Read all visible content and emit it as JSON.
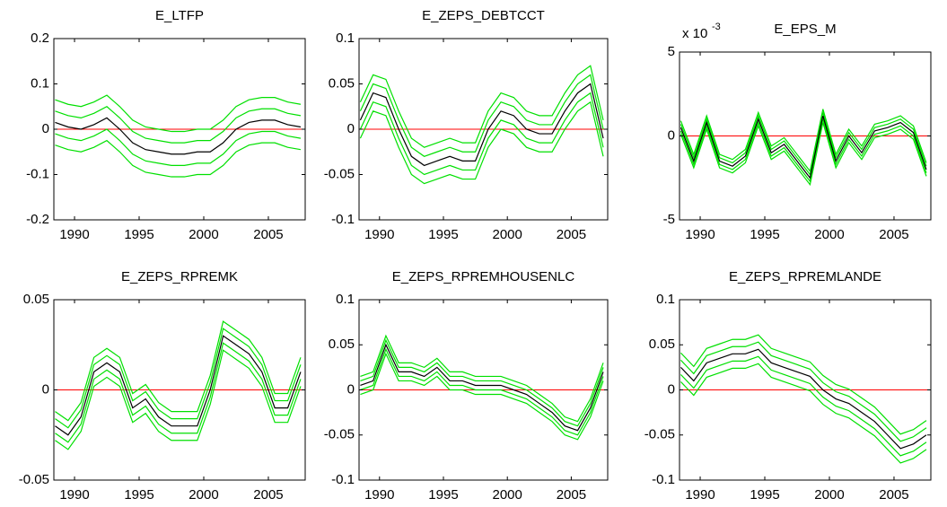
{
  "chart_data": [
    {
      "type": "line",
      "title": "E_LTFP",
      "x": [
        1988.5,
        1989.5,
        1990.5,
        1991.5,
        1992.5,
        1993.5,
        1994.5,
        1995.5,
        1996.5,
        1997.5,
        1998.5,
        1999.5,
        2000.5,
        2001.5,
        2002.5,
        2003.5,
        2004.5,
        2005.5,
        2006.5,
        2007.5
      ],
      "xlim": [
        1988.4,
        2007.85
      ],
      "xticks": [
        1990,
        1995,
        2000,
        2005
      ],
      "ylim": [
        -0.2,
        0.2
      ],
      "yticks": [
        -0.2,
        -0.1,
        0,
        0.1,
        0.2
      ],
      "reference_line": {
        "value": 0,
        "color": "#ff0000"
      },
      "series": [
        {
          "color": "#00e000",
          "values": [
            0.065,
            0.055,
            0.05,
            0.06,
            0.075,
            0.05,
            0.02,
            0.005,
            0,
            -0.005,
            -0.005,
            0,
            0,
            0.02,
            0.05,
            0.065,
            0.07,
            0.07,
            0.06,
            0.055
          ]
        },
        {
          "color": "#00e000",
          "values": [
            0.04,
            0.03,
            0.025,
            0.035,
            0.05,
            0.025,
            -0.005,
            -0.02,
            -0.025,
            -0.03,
            -0.03,
            -0.025,
            -0.025,
            -0.005,
            0.025,
            0.04,
            0.045,
            0.045,
            0.035,
            0.03
          ]
        },
        {
          "color": "#00e000",
          "values": [
            -0.01,
            -0.02,
            -0.025,
            -0.015,
            0,
            -0.025,
            -0.055,
            -0.07,
            -0.075,
            -0.08,
            -0.08,
            -0.075,
            -0.075,
            -0.055,
            -0.025,
            -0.01,
            -0.005,
            -0.005,
            -0.015,
            -0.02
          ]
        },
        {
          "color": "#00e000",
          "values": [
            -0.035,
            -0.045,
            -0.05,
            -0.04,
            -0.025,
            -0.05,
            -0.08,
            -0.095,
            -0.1,
            -0.105,
            -0.105,
            -0.1,
            -0.1,
            -0.08,
            -0.05,
            -0.035,
            -0.03,
            -0.03,
            -0.04,
            -0.045
          ]
        },
        {
          "color": "#000000",
          "values": [
            0.015,
            0.005,
            0,
            0.01,
            0.025,
            0,
            -0.03,
            -0.045,
            -0.05,
            -0.055,
            -0.055,
            -0.05,
            -0.05,
            -0.03,
            0,
            0.015,
            0.02,
            0.02,
            0.01,
            0.005
          ]
        }
      ]
    },
    {
      "type": "line",
      "title": "E_ZEPS_DEBTCCT",
      "x": [
        1988.5,
        1989.5,
        1990.5,
        1991.5,
        1992.5,
        1993.5,
        1994.5,
        1995.5,
        1996.5,
        1997.5,
        1998.5,
        1999.5,
        2000.5,
        2001.5,
        2002.5,
        2003.5,
        2004.5,
        2005.5,
        2006.5,
        2007.5
      ],
      "xlim": [
        1988.4,
        2007.85
      ],
      "xticks": [
        1990,
        1995,
        2000,
        2005
      ],
      "ylim": [
        -0.1,
        0.1
      ],
      "yticks": [
        -0.1,
        -0.05,
        0,
        0.05,
        0.1
      ],
      "reference_line": {
        "value": 0,
        "color": "#ff0000"
      },
      "series": [
        {
          "color": "#00e000",
          "values": [
            0.03,
            0.06,
            0.055,
            0.02,
            -0.01,
            -0.02,
            -0.015,
            -0.01,
            -0.015,
            -0.015,
            0.02,
            0.04,
            0.035,
            0.02,
            0.015,
            0.015,
            0.04,
            0.06,
            0.07,
            0.01
          ]
        },
        {
          "color": "#00e000",
          "values": [
            0.02,
            0.05,
            0.045,
            0.01,
            -0.02,
            -0.03,
            -0.025,
            -0.02,
            -0.025,
            -0.025,
            0.01,
            0.03,
            0.025,
            0.01,
            0.005,
            0.005,
            0.03,
            0.05,
            0.06,
            0
          ]
        },
        {
          "color": "#00e000",
          "values": [
            0,
            0.03,
            0.025,
            -0.01,
            -0.04,
            -0.05,
            -0.045,
            -0.04,
            -0.045,
            -0.045,
            -0.01,
            0.01,
            0.005,
            -0.01,
            -0.015,
            -0.015,
            0.01,
            0.03,
            0.04,
            -0.02
          ]
        },
        {
          "color": "#00e000",
          "values": [
            -0.01,
            0.02,
            0.015,
            -0.02,
            -0.05,
            -0.06,
            -0.055,
            -0.05,
            -0.055,
            -0.055,
            -0.02,
            0,
            -0.005,
            -0.02,
            -0.025,
            -0.025,
            0,
            0.02,
            0.03,
            -0.03
          ]
        },
        {
          "color": "#000000",
          "values": [
            0.01,
            0.04,
            0.035,
            0,
            -0.03,
            -0.04,
            -0.035,
            -0.03,
            -0.035,
            -0.035,
            0,
            0.02,
            0.015,
            0,
            -0.005,
            -0.005,
            0.02,
            0.04,
            0.05,
            -0.01
          ]
        }
      ]
    },
    {
      "type": "line",
      "title": "E_EPS_M",
      "y_multiplier": {
        "base": "x 10",
        "exponent": "-3"
      },
      "x": [
        1988.5,
        1989.5,
        1990.5,
        1991.5,
        1992.5,
        1993.5,
        1994.5,
        1995.5,
        1996.5,
        1997.5,
        1998.5,
        1999.5,
        2000.5,
        2001.5,
        2002.5,
        2003.5,
        2004.5,
        2005.5,
        2006.5,
        2007.5
      ],
      "xlim": [
        1988.4,
        2007.85
      ],
      "xticks": [
        1990,
        1995,
        2000,
        2005
      ],
      "ylim": [
        -5,
        5
      ],
      "yticks": [
        -5,
        0,
        5
      ],
      "reference_line": {
        "value": 0,
        "color": "#ff0000"
      },
      "series": [
        {
          "color": "#00e000",
          "values": [
            0.9,
            -1.1,
            1.2,
            -1.1,
            -1.4,
            -0.8,
            1.4,
            -0.6,
            -0.1,
            -1.1,
            -2.1,
            1.6,
            -1.1,
            0.4,
            -0.6,
            0.7,
            0.9,
            1.2,
            0.6,
            -1.6
          ]
        },
        {
          "color": "#00e000",
          "values": [
            0.7,
            -1.3,
            1.0,
            -1.3,
            -1.6,
            -1.0,
            1.2,
            -0.8,
            -0.3,
            -1.3,
            -2.3,
            1.4,
            -1.3,
            0.2,
            -0.8,
            0.5,
            0.7,
            1.0,
            0.4,
            -1.8
          ]
        },
        {
          "color": "#00e000",
          "values": [
            0.3,
            -1.7,
            0.6,
            -1.7,
            -2.0,
            -1.4,
            0.8,
            -1.2,
            -0.7,
            -1.7,
            -2.7,
            1.0,
            -1.7,
            -0.2,
            -1.2,
            0.1,
            0.3,
            0.6,
            0.0,
            -2.2
          ]
        },
        {
          "color": "#00e000",
          "values": [
            0.1,
            -1.9,
            0.4,
            -1.9,
            -2.2,
            -1.6,
            0.6,
            -1.4,
            -0.9,
            -1.9,
            -2.9,
            0.8,
            -1.9,
            -0.4,
            -1.4,
            -0.1,
            0.1,
            0.4,
            -0.2,
            -2.4
          ]
        },
        {
          "color": "#000000",
          "values": [
            0.5,
            -1.5,
            0.8,
            -1.5,
            -1.8,
            -1.2,
            1.0,
            -1.0,
            -0.5,
            -1.5,
            -2.5,
            1.2,
            -1.5,
            0.0,
            -1.0,
            0.3,
            0.5,
            0.8,
            0.2,
            -2.0
          ]
        }
      ]
    },
    {
      "type": "line",
      "title": "E_ZEPS_RPREMK",
      "x": [
        1988.5,
        1989.5,
        1990.5,
        1991.5,
        1992.5,
        1993.5,
        1994.5,
        1995.5,
        1996.5,
        1997.5,
        1998.5,
        1999.5,
        2000.5,
        2001.5,
        2002.5,
        2003.5,
        2004.5,
        2005.5,
        2006.5,
        2007.5
      ],
      "xlim": [
        1988.4,
        2007.85
      ],
      "xticks": [
        1990,
        1995,
        2000,
        2005
      ],
      "ylim": [
        -0.05,
        0.05
      ],
      "yticks": [
        -0.05,
        0,
        0.05
      ],
      "reference_line": {
        "value": 0,
        "color": "#ff0000"
      },
      "series": [
        {
          "color": "#00e000",
          "values": [
            -0.012,
            -0.017,
            -0.007,
            0.018,
            0.023,
            0.018,
            -0.002,
            0.003,
            -0.007,
            -0.012,
            -0.012,
            -0.012,
            0.008,
            0.038,
            0.033,
            0.028,
            0.018,
            -0.002,
            -0.002,
            0.018
          ]
        },
        {
          "color": "#00e000",
          "values": [
            -0.016,
            -0.021,
            -0.011,
            0.014,
            0.019,
            0.014,
            -0.006,
            -0.001,
            -0.011,
            -0.016,
            -0.016,
            -0.016,
            0.004,
            0.034,
            0.029,
            0.024,
            0.014,
            -0.006,
            -0.006,
            0.014
          ]
        },
        {
          "color": "#00e000",
          "values": [
            -0.024,
            -0.029,
            -0.019,
            0.006,
            0.011,
            0.006,
            -0.014,
            -0.009,
            -0.019,
            -0.024,
            -0.024,
            -0.024,
            -0.004,
            0.026,
            0.021,
            0.016,
            0.006,
            -0.014,
            -0.014,
            0.006
          ]
        },
        {
          "color": "#00e000",
          "values": [
            -0.028,
            -0.033,
            -0.023,
            0.002,
            0.007,
            0.002,
            -0.018,
            -0.013,
            -0.023,
            -0.028,
            -0.028,
            -0.028,
            -0.008,
            0.022,
            0.017,
            0.012,
            0.002,
            -0.018,
            -0.018,
            0.002
          ]
        },
        {
          "color": "#000000",
          "values": [
            -0.02,
            -0.025,
            -0.015,
            0.01,
            0.015,
            0.01,
            -0.01,
            -0.005,
            -0.015,
            -0.02,
            -0.02,
            -0.02,
            0,
            0.03,
            0.025,
            0.02,
            0.01,
            -0.01,
            -0.01,
            0.01
          ]
        }
      ]
    },
    {
      "type": "line",
      "title": "E_ZEPS_RPREMHOUSENLC",
      "x": [
        1988.5,
        1989.5,
        1990.5,
        1991.5,
        1992.5,
        1993.5,
        1994.5,
        1995.5,
        1996.5,
        1997.5,
        1998.5,
        1999.5,
        2000.5,
        2001.5,
        2002.5,
        2003.5,
        2004.5,
        2005.5,
        2006.5,
        2007.5
      ],
      "xlim": [
        1988.4,
        2007.85
      ],
      "xticks": [
        1990,
        1995,
        2000,
        2005
      ],
      "ylim": [
        -0.1,
        0.1
      ],
      "yticks": [
        -0.1,
        -0.05,
        0,
        0.05,
        0.1
      ],
      "reference_line": {
        "value": 0,
        "color": "#ff0000"
      },
      "series": [
        {
          "color": "#00e000",
          "values": [
            0.015,
            0.02,
            0.06,
            0.03,
            0.03,
            0.025,
            0.035,
            0.02,
            0.02,
            0.015,
            0.015,
            0.015,
            0.01,
            0.005,
            -0.005,
            -0.015,
            -0.03,
            -0.035,
            -0.01,
            0.03
          ]
        },
        {
          "color": "#00e000",
          "values": [
            0.01,
            0.015,
            0.055,
            0.025,
            0.025,
            0.02,
            0.03,
            0.015,
            0.015,
            0.01,
            0.01,
            0.01,
            0.005,
            0,
            -0.01,
            -0.02,
            -0.035,
            -0.04,
            -0.015,
            0.025
          ]
        },
        {
          "color": "#00e000",
          "values": [
            0,
            0.005,
            0.045,
            0.015,
            0.015,
            0.01,
            0.02,
            0.005,
            0.005,
            0,
            0,
            0,
            -0.005,
            -0.01,
            -0.02,
            -0.03,
            -0.045,
            -0.05,
            -0.025,
            0.015
          ]
        },
        {
          "color": "#00e000",
          "values": [
            -0.005,
            0,
            0.04,
            0.01,
            0.01,
            0.005,
            0.015,
            0,
            0,
            -0.005,
            -0.005,
            -0.005,
            -0.01,
            -0.015,
            -0.025,
            -0.035,
            -0.05,
            -0.055,
            -0.03,
            0.01
          ]
        },
        {
          "color": "#000000",
          "values": [
            0.005,
            0.01,
            0.05,
            0.02,
            0.02,
            0.015,
            0.025,
            0.01,
            0.01,
            0.005,
            0.005,
            0.005,
            0,
            -0.005,
            -0.015,
            -0.025,
            -0.04,
            -0.045,
            -0.02,
            0.02
          ]
        }
      ]
    },
    {
      "type": "line",
      "title": "E_ZEPS_RPREMLANDE",
      "x": [
        1988.5,
        1989.5,
        1990.5,
        1991.5,
        1992.5,
        1993.5,
        1994.5,
        1995.5,
        1996.5,
        1997.5,
        1998.5,
        1999.5,
        2000.5,
        2001.5,
        2002.5,
        2003.5,
        2004.5,
        2005.5,
        2006.5,
        2007.5
      ],
      "xlim": [
        1988.4,
        2007.85
      ],
      "xticks": [
        1990,
        1995,
        2000,
        2005
      ],
      "ylim": [
        -0.1,
        0.1
      ],
      "yticks": [
        -0.1,
        -0.05,
        0,
        0.05,
        0.1
      ],
      "reference_line": {
        "value": 0,
        "color": "#ff0000"
      },
      "series": [
        {
          "color": "#00e000",
          "values": [
            0.041,
            0.026,
            0.046,
            0.051,
            0.056,
            0.056,
            0.061,
            0.046,
            0.041,
            0.036,
            0.031,
            0.016,
            0.006,
            0.001,
            -0.009,
            -0.019,
            -0.034,
            -0.049,
            -0.044,
            -0.034
          ]
        },
        {
          "color": "#00e000",
          "values": [
            0.033,
            0.018,
            0.038,
            0.043,
            0.048,
            0.048,
            0.053,
            0.038,
            0.033,
            0.028,
            0.023,
            0.008,
            -0.002,
            -0.007,
            -0.017,
            -0.027,
            -0.042,
            -0.057,
            -0.052,
            -0.042
          ]
        },
        {
          "color": "#00e000",
          "values": [
            0.017,
            0.002,
            0.022,
            0.027,
            0.032,
            0.032,
            0.037,
            0.022,
            0.017,
            0.012,
            0.007,
            -0.008,
            -0.018,
            -0.023,
            -0.033,
            -0.043,
            -0.058,
            -0.073,
            -0.068,
            -0.058
          ]
        },
        {
          "color": "#00e000",
          "values": [
            0.009,
            -0.006,
            0.014,
            0.019,
            0.024,
            0.024,
            0.029,
            0.014,
            0.009,
            0.004,
            -0.001,
            -0.016,
            -0.026,
            -0.031,
            -0.041,
            -0.051,
            -0.066,
            -0.081,
            -0.076,
            -0.066
          ]
        },
        {
          "color": "#000000",
          "values": [
            0.025,
            0.01,
            0.03,
            0.035,
            0.04,
            0.04,
            0.045,
            0.03,
            0.025,
            0.02,
            0.015,
            0,
            -0.01,
            -0.015,
            -0.025,
            -0.035,
            -0.05,
            -0.065,
            -0.06,
            -0.05
          ]
        }
      ]
    }
  ]
}
